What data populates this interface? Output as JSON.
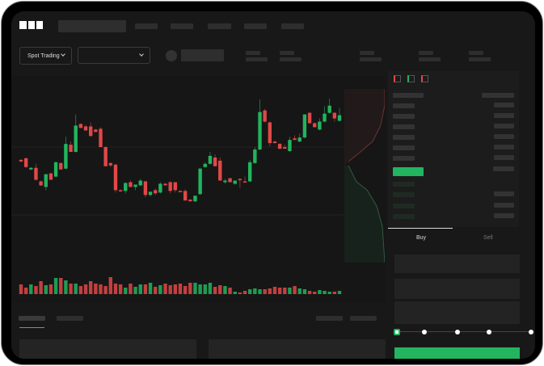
{
  "header": {
    "logo": "OKX"
  },
  "toolbar": {
    "market_type": "Spot Trading"
  },
  "trade": {
    "tabs": [
      {
        "label": "Buy",
        "active": true
      },
      {
        "label": "Sell",
        "active": false
      }
    ],
    "leverage_slider": {
      "value": 0,
      "steps": 5
    }
  },
  "colors": {
    "up": "#22b45e",
    "down": "#e04848",
    "background": "#181818"
  },
  "chart_data": {
    "type": "candlestick",
    "candles": [
      [
        95,
        96,
        92,
        93
      ],
      [
        97,
        98,
        85,
        86
      ],
      [
        83,
        86,
        82,
        85
      ],
      [
        85,
        90,
        69,
        70
      ],
      [
        68,
        69,
        62,
        63
      ],
      [
        61,
        77,
        57,
        77
      ],
      [
        78,
        79,
        70,
        70
      ],
      [
        74,
        93,
        73,
        92
      ],
      [
        91,
        92,
        83,
        83
      ],
      [
        84,
        124,
        83,
        115
      ],
      [
        114,
        118,
        105,
        105
      ],
      [
        105,
        152,
        104,
        138
      ],
      [
        140,
        141,
        135,
        135
      ],
      [
        137,
        139,
        131,
        132
      ],
      [
        137,
        142,
        124,
        125
      ],
      [
        133,
        134,
        130,
        130
      ],
      [
        134,
        136,
        111,
        111
      ],
      [
        111,
        112,
        87,
        87
      ],
      [
        91,
        92,
        86,
        88
      ],
      [
        89,
        90,
        54,
        57
      ],
      [
        57,
        58,
        55,
        56
      ],
      [
        56,
        67,
        53,
        66
      ],
      [
        67,
        69,
        61,
        61
      ],
      [
        61,
        64,
        57,
        64
      ],
      [
        63,
        71,
        62,
        69
      ],
      [
        68,
        69,
        48,
        51
      ],
      [
        51,
        55,
        49,
        55
      ],
      [
        57,
        59,
        51,
        53
      ],
      [
        54,
        67,
        53,
        65
      ],
      [
        65,
        66,
        63,
        63
      ],
      [
        67,
        68,
        53,
        56
      ],
      [
        67,
        67,
        54,
        57
      ],
      [
        56,
        57,
        55,
        55
      ],
      [
        56,
        58,
        44,
        44
      ],
      [
        45,
        46,
        43,
        43
      ],
      [
        43,
        50,
        42,
        50
      ],
      [
        52,
        85,
        51,
        84
      ],
      [
        86,
        92,
        85,
        90
      ],
      [
        90,
        105,
        89,
        100
      ],
      [
        98,
        102,
        87,
        87
      ],
      [
        94,
        98,
        69,
        69
      ],
      [
        67,
        71,
        65,
        69
      ],
      [
        72,
        72,
        67,
        67
      ],
      [
        65,
        69,
        64,
        69
      ],
      [
        71,
        72,
        60,
        70
      ],
      [
        68,
        74,
        67,
        67
      ],
      [
        68,
        95,
        67,
        92
      ],
      [
        91,
        111,
        90,
        108
      ],
      [
        108,
        171,
        107,
        155
      ],
      [
        157,
        159,
        142,
        143
      ],
      [
        142,
        143,
        112,
        116
      ],
      [
        118,
        119,
        116,
        116
      ],
      [
        115,
        116,
        108,
        109
      ],
      [
        111,
        114,
        109,
        109
      ],
      [
        106,
        124,
        105,
        120
      ],
      [
        122,
        126,
        120,
        120
      ],
      [
        118,
        128,
        117,
        123
      ],
      [
        123,
        152,
        122,
        152
      ],
      [
        154,
        155,
        140,
        141
      ],
      [
        141,
        142,
        136,
        136
      ],
      [
        133,
        147,
        132,
        143
      ],
      [
        143,
        162,
        142,
        153
      ],
      [
        154,
        172,
        153,
        163
      ],
      [
        154,
        155,
        143,
        147
      ],
      [
        144,
        160,
        143,
        151
      ]
    ],
    "volume": [
      12,
      8,
      12,
      10,
      16,
      11,
      12,
      20,
      20,
      17,
      13,
      13,
      10,
      12,
      16,
      13,
      12,
      10,
      21,
      13,
      12,
      8,
      13,
      9,
      12,
      12,
      14,
      9,
      11,
      13,
      11,
      12,
      13,
      10,
      14,
      14,
      12,
      12,
      14,
      9,
      11,
      10,
      8,
      3,
      2,
      4,
      6,
      7,
      6,
      6,
      7,
      9,
      8,
      8,
      8,
      10,
      7,
      6,
      4,
      3,
      5,
      4,
      3,
      3,
      4
    ],
    "grid": true
  }
}
